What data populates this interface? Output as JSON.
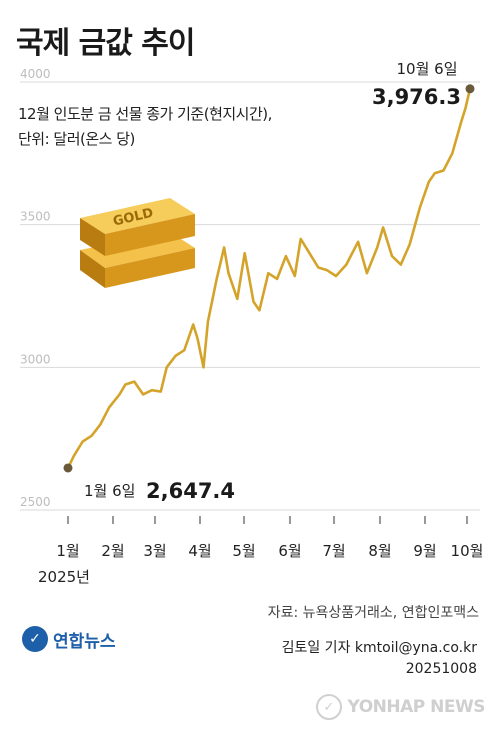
{
  "title": "국제 금값 추이",
  "subtitle_line1": "12월 인도분 금 선물 종가 기준(현지시간),",
  "subtitle_line2": "단위: 달러(온스 당)",
  "source": "자료: 뉴욕상품거래소, 연합인포맥스",
  "reporter": "김토일 기자 kmtoil@yna.co.kr",
  "date": "20251008",
  "logo_text": "연합뉴스",
  "watermark_text": "YONHAP NEWS",
  "bar_label": "GOLD",
  "colors": {
    "line": "#d4a32a",
    "marker": "#6b5a3a",
    "grid": "#d9d9d9",
    "brand": "#1d5fa8"
  },
  "icons": {
    "gold_bars": "gold-bars-illustration",
    "logo": "yonhap-logo-icon",
    "watermark": "yonhap-watermark-icon"
  },
  "chart_data": {
    "type": "line",
    "title": "국제 금값 추이",
    "ylim": [
      2500,
      4000
    ],
    "yticks": [
      "4000",
      "3500",
      "3000",
      "2500"
    ],
    "ytick_values": [
      4000,
      3500,
      3000,
      2500
    ],
    "x_tick_labels": [
      "1월",
      "2월",
      "3월",
      "4월",
      "5월",
      "6월",
      "7월",
      "8월",
      "9월",
      "10월"
    ],
    "year_label": "2025년",
    "grid": true,
    "x_start": "2025-01-06",
    "x_end": "2025-10-06",
    "x": [
      "2025-01-06",
      "2025-01-10",
      "2025-01-16",
      "2025-01-22",
      "2025-01-28",
      "2025-02-03",
      "2025-02-10",
      "2025-02-14",
      "2025-02-20",
      "2025-02-26",
      "2025-03-04",
      "2025-03-10",
      "2025-03-14",
      "2025-03-20",
      "2025-03-26",
      "2025-04-01",
      "2025-04-04",
      "2025-04-08",
      "2025-04-11",
      "2025-04-17",
      "2025-04-22",
      "2025-04-25",
      "2025-05-01",
      "2025-05-06",
      "2025-05-12",
      "2025-05-16",
      "2025-05-22",
      "2025-05-28",
      "2025-06-03",
      "2025-06-09",
      "2025-06-13",
      "2025-06-19",
      "2025-06-25",
      "2025-07-01",
      "2025-07-07",
      "2025-07-14",
      "2025-07-22",
      "2025-07-28",
      "2025-08-04",
      "2025-08-08",
      "2025-08-14",
      "2025-08-20",
      "2025-08-26",
      "2025-09-02",
      "2025-09-08",
      "2025-09-12",
      "2025-09-18",
      "2025-09-24",
      "2025-09-30",
      "2025-10-03",
      "2025-10-06"
    ],
    "series": [
      {
        "values": [
          2647.4,
          2690,
          2740,
          2760,
          2800,
          2860,
          2905,
          2940,
          2950,
          2905,
          2920,
          2915,
          3000,
          3040,
          3060,
          3150,
          3100,
          3000,
          3160,
          3310,
          3420,
          3330,
          3240,
          3400,
          3230,
          3200,
          3330,
          3310,
          3390,
          3320,
          3450,
          3400,
          3350,
          3340,
          3320,
          3360,
          3440,
          3330,
          3420,
          3490,
          3390,
          3360,
          3430,
          3560,
          3650,
          3680,
          3690,
          3750,
          3860,
          3910,
          3976.3
        ]
      }
    ],
    "annotations": [
      {
        "label": "1월 6일",
        "value_text": "2,647.4",
        "x": "2025-01-06",
        "y": 2647.4
      },
      {
        "label": "10월 6일",
        "value_text": "3,976.3",
        "x": "2025-10-06",
        "y": 3976.3
      }
    ]
  }
}
